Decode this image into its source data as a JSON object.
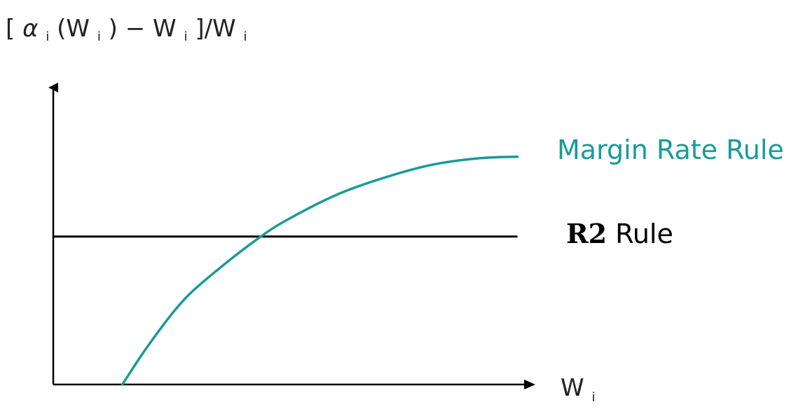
{
  "colors": {
    "margin_rate": "#1a9a9a",
    "r2": "#000000",
    "axis": "#000000",
    "text": "#222222"
  },
  "chart_data": {
    "type": "line",
    "xlabel": {
      "main": "W",
      "sub": "i"
    },
    "ylabel": {
      "open": "[ ",
      "alpha": "α",
      "sub_i_1": "i",
      "mid1": "(W",
      "sub_i_2": "i",
      "mid2": ") − W",
      "sub_i_3": "i",
      "mid3": "]/W",
      "sub_i_4": "i"
    },
    "xlim": [
      0,
      10
    ],
    "ylim": [
      0,
      10
    ],
    "axis_ticks": "none",
    "grid": false,
    "series": [
      {
        "name": "Margin Rate Rule",
        "label_parts": [
          "Margin Rate Rule"
        ],
        "color": "#1a9a9a",
        "shape": "concave increasing, leveling off",
        "x": [
          1.46,
          2.0,
          2.73,
          3.5,
          4.38,
          5.0,
          6.0,
          7.0,
          8.0,
          9.0,
          9.8
        ],
        "y": [
          0.0,
          1.3,
          2.8,
          3.9,
          4.98,
          5.6,
          6.4,
          6.97,
          7.4,
          7.62,
          7.67
        ]
      },
      {
        "name": "R2 Rule",
        "label_bold": "R2",
        "label_rest": " Rule",
        "color": "#000000",
        "shape": "horizontal constant",
        "x": [
          0.0,
          9.8
        ],
        "y": [
          4.98,
          4.98
        ]
      }
    ]
  }
}
